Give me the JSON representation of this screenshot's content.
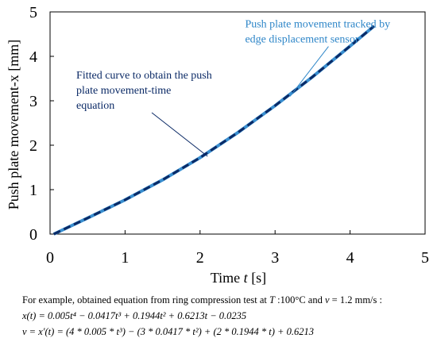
{
  "chart_data": {
    "type": "line",
    "xlabel_prefix": "Time ",
    "xlabel_var": "t",
    "xlabel_unit": " [s]",
    "ylabel": "Push plate movement-x [mm]",
    "xlim": [
      0,
      5
    ],
    "ylim": [
      0,
      5
    ],
    "xticks": [
      "0",
      "1",
      "2",
      "3",
      "4",
      "5"
    ],
    "yticks": [
      "0",
      "1",
      "2",
      "3",
      "4",
      "5"
    ],
    "grid": false,
    "series": [
      {
        "name": "Push plate movement tracked by edge displacement sensor",
        "color": "#3a8fd0",
        "style": "solid",
        "x": [
          0.05,
          0.5,
          1.0,
          1.5,
          2.0,
          2.5,
          3.0,
          3.5,
          4.0,
          4.32
        ],
        "y": [
          0.0,
          0.36,
          0.77,
          1.22,
          1.72,
          2.28,
          2.89,
          3.54,
          4.23,
          4.68
        ]
      },
      {
        "name": "Fitted curve to obtain the push plate movement-time equation",
        "color": "#0b2a66",
        "style": "dashed",
        "x": [
          0.05,
          0.5,
          1.0,
          1.5,
          2.0,
          2.5,
          3.0,
          3.5,
          4.0,
          4.32
        ],
        "y": [
          0.0,
          0.36,
          0.77,
          1.22,
          1.72,
          2.28,
          2.89,
          3.54,
          4.23,
          4.68
        ]
      }
    ],
    "annotations": [
      {
        "lines": [
          "Push plate movement tracked by",
          "edge displacement sensor"
        ],
        "color": "#2e86c8",
        "text_at": [
          2.6,
          4.65
        ],
        "arrow_to": [
          3.2,
          3.1
        ]
      },
      {
        "lines": [
          "Fitted curve to obtain the push",
          "plate movement-time",
          "equation"
        ],
        "color": "#0b2a66",
        "text_at": [
          0.35,
          3.5
        ],
        "arrow_to": [
          2.1,
          1.75
        ]
      }
    ]
  },
  "caption": {
    "intro": "For example, obtained equation from ring compression test at ",
    "T_symbol": "T",
    "T_value": " :100°C and ",
    "v_symbol": "v",
    "v_value": " = 1.2 mm/s :",
    "eq1_lhs": "x(t) = ",
    "eq1_rhs": "0.005t⁴ − 0.0417t³ + 0.1944t² + 0.6213t − 0.0235",
    "eq2_lhs": "v = x′(t) = ",
    "eq2_rhs": "(4 * 0.005 * t³) − (3 * 0.0417 * t²) + (2 * 0.1944 * t) + 0.6213"
  }
}
